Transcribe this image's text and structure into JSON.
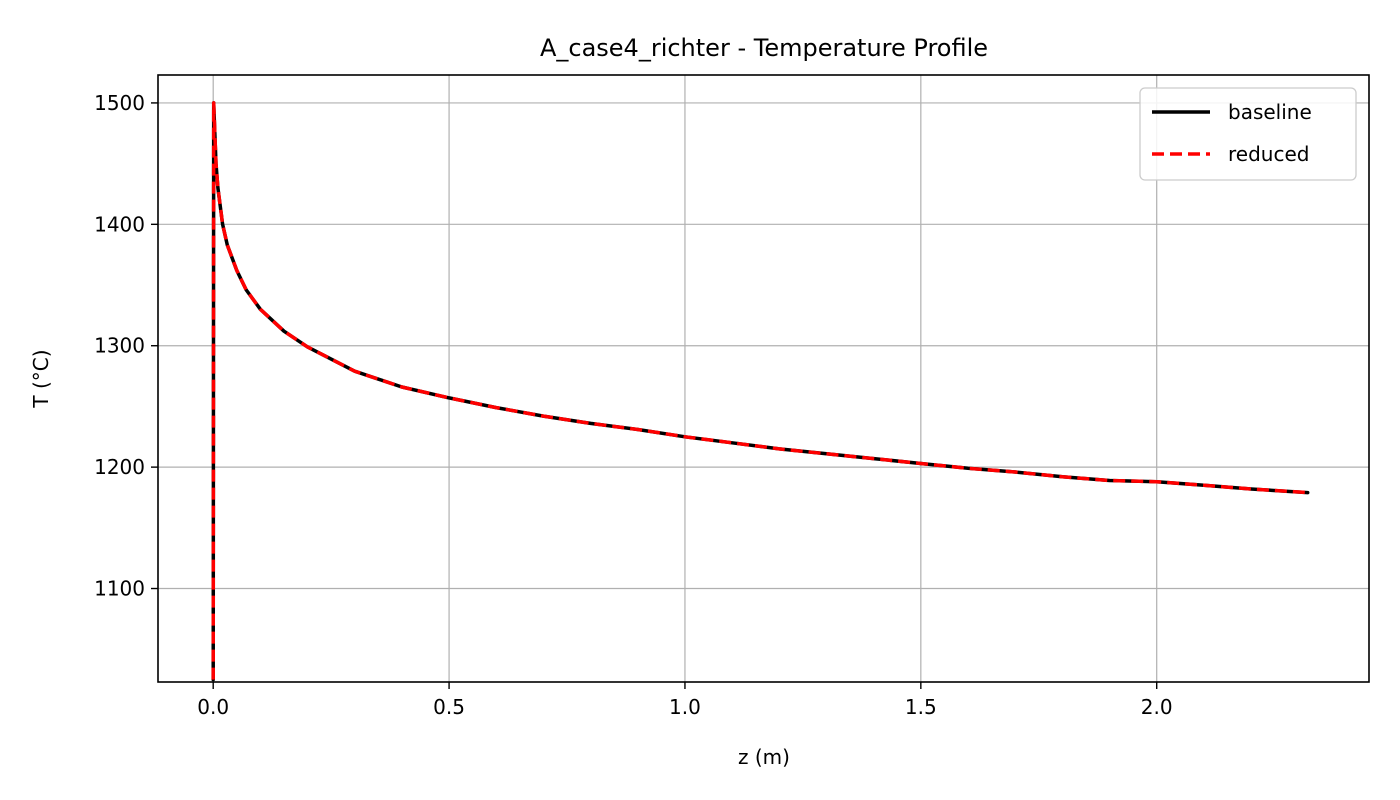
{
  "chart_data": {
    "type": "line",
    "title": "A_case4_richter - Temperature Profile",
    "xlabel": "z (m)",
    "ylabel": "T (°C)",
    "xlim": [
      -0.117,
      2.45
    ],
    "ylim": [
      1023,
      1523
    ],
    "xticks": [
      0.0,
      0.5,
      1.0,
      1.5,
      2.0
    ],
    "xtick_labels": [
      "0.0",
      "0.5",
      "1.0",
      "1.5",
      "2.0"
    ],
    "yticks": [
      1100,
      1200,
      1300,
      1400,
      1500
    ],
    "ytick_labels": [
      "1100",
      "1200",
      "1300",
      "1400",
      "1500"
    ],
    "grid": true,
    "legend_position": "top-right",
    "series": [
      {
        "name": "baseline",
        "color": "#000000",
        "style": "solid",
        "x": [
          0.0,
          0.001,
          0.003,
          0.006,
          0.01,
          0.02,
          0.03,
          0.05,
          0.07,
          0.1,
          0.15,
          0.2,
          0.3,
          0.4,
          0.5,
          0.6,
          0.7,
          0.8,
          0.9,
          1.0,
          1.1,
          1.2,
          1.3,
          1.4,
          1.5,
          1.6,
          1.7,
          1.8,
          1.9,
          2.0,
          2.1,
          2.2,
          2.32
        ],
        "y": [
          1025,
          1500,
          1480,
          1450,
          1430,
          1400,
          1383,
          1362,
          1346,
          1330,
          1312,
          1299,
          1279,
          1266,
          1257,
          1249,
          1242,
          1236,
          1231,
          1225,
          1220,
          1215,
          1211,
          1207,
          1203,
          1199,
          1196,
          1192,
          1189,
          1188,
          1185,
          1182,
          1179
        ]
      },
      {
        "name": "reduced",
        "color": "#ff0000",
        "style": "dashed",
        "x": [
          0.0,
          0.001,
          0.003,
          0.006,
          0.01,
          0.02,
          0.03,
          0.05,
          0.07,
          0.1,
          0.15,
          0.2,
          0.3,
          0.4,
          0.5,
          0.6,
          0.7,
          0.8,
          0.9,
          1.0,
          1.1,
          1.2,
          1.3,
          1.4,
          1.5,
          1.6,
          1.7,
          1.8,
          1.9,
          2.0,
          2.1,
          2.2,
          2.32
        ],
        "y": [
          1025,
          1500,
          1480,
          1450,
          1430,
          1400,
          1383,
          1362,
          1346,
          1330,
          1312,
          1299,
          1279,
          1266,
          1257,
          1249,
          1242,
          1236,
          1231,
          1225,
          1220,
          1215,
          1211,
          1207,
          1203,
          1199,
          1196,
          1192,
          1189,
          1188,
          1185,
          1182,
          1179
        ]
      }
    ]
  }
}
